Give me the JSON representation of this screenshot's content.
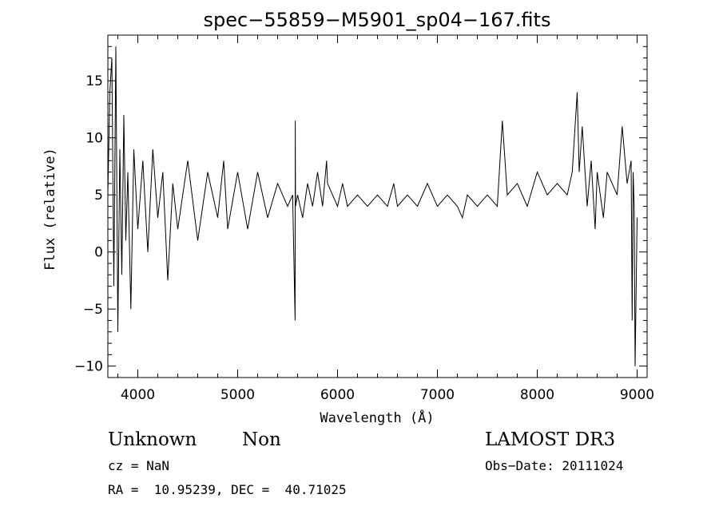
{
  "chart_data": {
    "type": "line",
    "title": "spec−55859−M5901_sp04−167.fits",
    "xlabel": "Wavelength (Å)",
    "ylabel": "Flux (relative)",
    "xlim": [
      3700,
      9100
    ],
    "ylim": [
      -11,
      19
    ],
    "xticks": [
      4000,
      5000,
      6000,
      7000,
      8000,
      9000
    ],
    "yticks": [
      -10,
      -5,
      0,
      5,
      10,
      15
    ],
    "ytick_labels": [
      "−10",
      "−5",
      "0",
      "5",
      "10",
      "15"
    ],
    "grid": false,
    "series": [
      {
        "x": [
          3700,
          3720,
          3740,
          3760,
          3780,
          3800,
          3820,
          3840,
          3860,
          3880,
          3900,
          3930,
          3960,
          4000,
          4050,
          4100,
          4150,
          4200,
          4250,
          4300,
          4350,
          4400,
          4500,
          4600,
          4700,
          4800,
          4860,
          4900,
          5000,
          5100,
          5200,
          5300,
          5400,
          5500,
          5550,
          5575,
          5577,
          5579,
          5600,
          5650,
          5700,
          5750,
          5800,
          5850,
          5890,
          5900,
          5950,
          6000,
          6050,
          6100,
          6200,
          6300,
          6400,
          6500,
          6563,
          6600,
          6700,
          6800,
          6900,
          7000,
          7100,
          7200,
          7250,
          7300,
          7400,
          7500,
          7600,
          7650,
          7700,
          7800,
          7900,
          8000,
          8100,
          8200,
          8300,
          8350,
          8400,
          8420,
          8450,
          8500,
          8540,
          8580,
          8600,
          8662,
          8700,
          8800,
          8850,
          8900,
          8940,
          8950,
          8960,
          8970,
          8980,
          9000
        ],
        "y": [
          5,
          14,
          17,
          -3,
          18,
          -7,
          9,
          -2,
          12,
          1,
          7,
          -5,
          9,
          2,
          8,
          0,
          9,
          3,
          7,
          -2.5,
          6,
          2,
          8,
          1,
          7,
          3,
          8,
          2,
          7,
          2,
          7,
          3,
          6,
          4,
          5,
          -6,
          11.5,
          4,
          5,
          3,
          6,
          4,
          7,
          4,
          8,
          6,
          5,
          4,
          6,
          4,
          5,
          4,
          5,
          4,
          6,
          4,
          5,
          4,
          6,
          4,
          5,
          4,
          3,
          5,
          4,
          5,
          4,
          11.5,
          5,
          6,
          4,
          7,
          5,
          6,
          5,
          7,
          14,
          7,
          11,
          4,
          8,
          2,
          7,
          3,
          7,
          5,
          11,
          6,
          8,
          -6,
          7,
          4,
          -10,
          3
        ]
      }
    ]
  },
  "info": {
    "object_type": "Unknown",
    "object_subtype": "Non",
    "survey": "LAMOST DR3",
    "cz": "cz = NaN",
    "obs_date": "Obs−Date: 20111024",
    "coords": "RA =  10.95239, DEC =  40.71025"
  }
}
